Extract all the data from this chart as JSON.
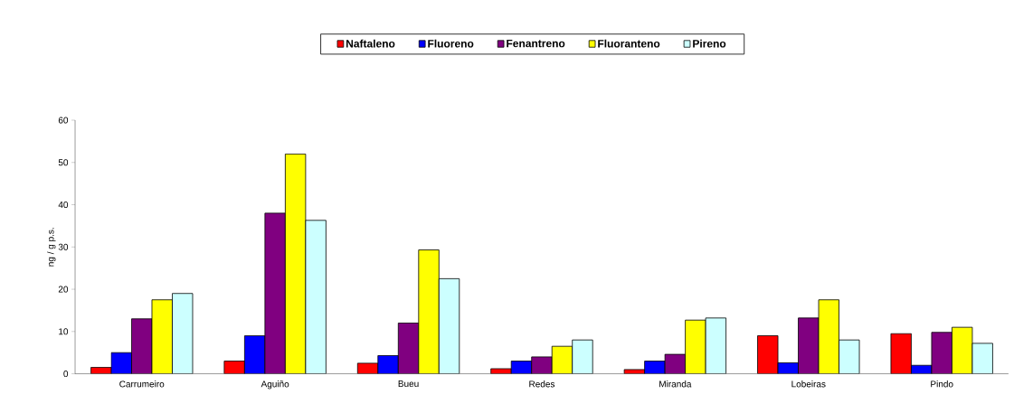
{
  "chart_data": {
    "type": "bar",
    "ylabel": "ng / g p.s.",
    "categories": [
      "Carrumeiro",
      "Aguiño",
      "Bueu",
      "Redes",
      "Miranda",
      "Lobeiras",
      "Pindo"
    ],
    "series": [
      {
        "name": "Naftaleno",
        "color": "#ff0000",
        "values": [
          1.5,
          3,
          2.5,
          1.2,
          1,
          9,
          9.5
        ]
      },
      {
        "name": "Fluoreno",
        "color": "#0000ff",
        "values": [
          5,
          9,
          4.3,
          3,
          3,
          2.6,
          2
        ]
      },
      {
        "name": "Fenantreno",
        "color": "#800080",
        "values": [
          13,
          38,
          12,
          4,
          4.6,
          13.2,
          9.8
        ]
      },
      {
        "name": "Fluoranteno",
        "color": "#ffff00",
        "values": [
          17.5,
          52,
          29.3,
          6.5,
          12.7,
          17.5,
          11
        ]
      },
      {
        "name": "Pireno",
        "color": "#ccffff",
        "values": [
          19,
          36.3,
          22.5,
          8,
          13.2,
          8,
          7.2
        ]
      }
    ],
    "ylim": [
      0,
      60
    ],
    "yticks": [
      0,
      10,
      20,
      30,
      40,
      50,
      60
    ],
    "grid": false,
    "legend": "top"
  }
}
